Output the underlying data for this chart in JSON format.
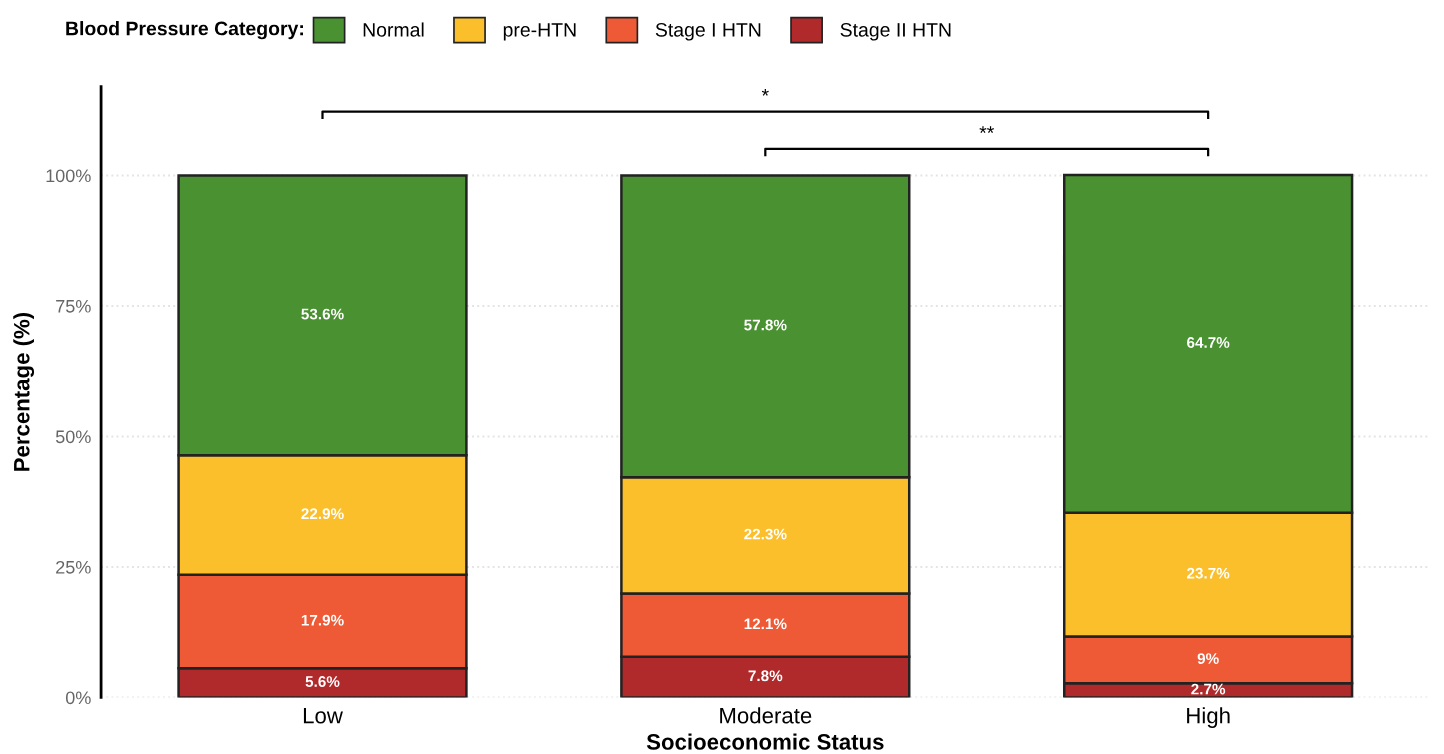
{
  "chart_data": {
    "type": "bar",
    "stacked": true,
    "xlabel": "Socioeconomic Status",
    "ylabel": "Percentage (%)",
    "legend_title": "Blood Pressure Category:",
    "categories": [
      "Low",
      "Moderate",
      "High"
    ],
    "series": [
      {
        "name": "Stage II HTN",
        "color": "#b0292b",
        "values": [
          5.6,
          7.8,
          2.7
        ],
        "value_labels": [
          "5.6%",
          "7.8%",
          "2.7%"
        ]
      },
      {
        "name": "Stage I HTN",
        "color": "#ee5a35",
        "values": [
          17.9,
          12.1,
          9
        ],
        "value_labels": [
          "17.9%",
          "12.1%",
          "9%"
        ]
      },
      {
        "name": "pre-HTN",
        "color": "#fbbf2c",
        "values": [
          22.9,
          22.3,
          23.7
        ],
        "value_labels": [
          "22.9%",
          "22.3%",
          "23.7%"
        ]
      },
      {
        "name": "Normal",
        "color": "#4a9132",
        "values": [
          53.6,
          57.8,
          64.7
        ],
        "value_labels": [
          "53.6%",
          "57.8%",
          "64.7%"
        ]
      }
    ],
    "ylim": [
      0,
      117
    ],
    "yticks": [
      {
        "value": 0,
        "label": "0%"
      },
      {
        "value": 25,
        "label": "25%"
      },
      {
        "value": 50,
        "label": "50%"
      },
      {
        "value": 75,
        "label": "75%"
      },
      {
        "value": 100,
        "label": "100%"
      }
    ],
    "grid": "y",
    "legend": "top",
    "annotations": [
      "*",
      "**"
    ]
  }
}
